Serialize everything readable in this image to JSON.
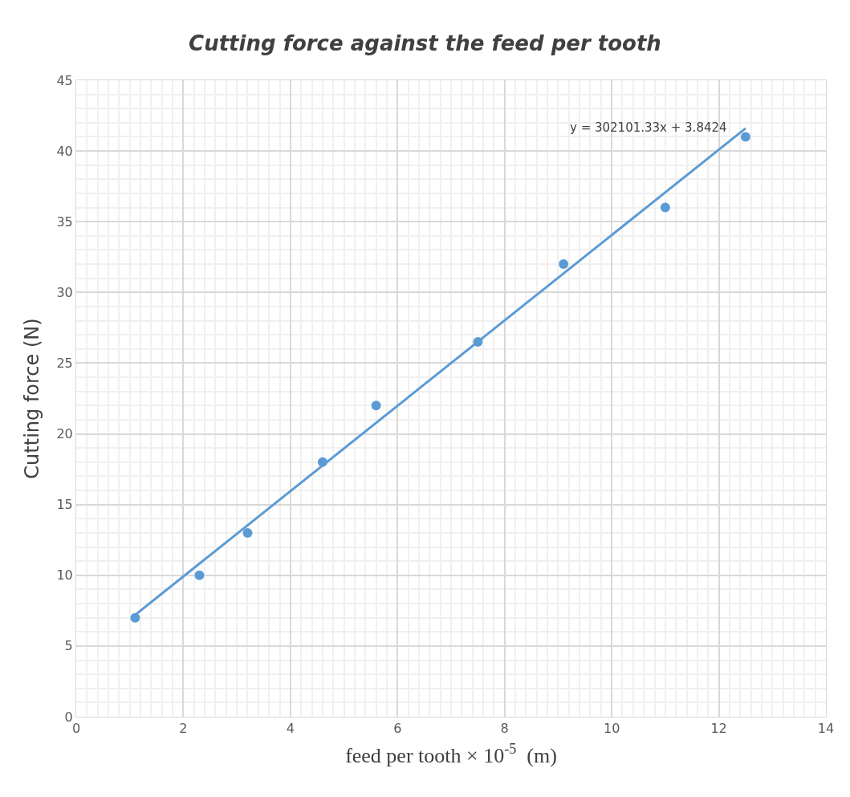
{
  "chart_data": {
    "type": "scatter",
    "title": "Cutting force against the feed per tooth",
    "xlabel": "feed per tooth × 10$^{-5}$  (m)",
    "ylabel": "Cutting force (N)",
    "x": [
      1.1,
      2.3,
      3.2,
      4.6,
      5.6,
      7.5,
      9.1,
      11,
      12.5
    ],
    "series": [
      {
        "color": "#5b9bd5",
        "values": [
          7,
          10,
          13,
          18,
          22,
          26.5,
          32,
          36,
          41
        ],
        "marker": "circle"
      },
      {
        "type": "line",
        "color": "#5b9bd5",
        "x": [
          1.1,
          12.5
        ],
        "values": [
          7.2,
          41.6
        ],
        "line_style": "solid"
      }
    ],
    "annotations": [
      "y = 302101.33x + 3.8424"
    ],
    "xlim": [
      0,
      14
    ],
    "xticks": [
      0,
      2,
      4,
      6,
      8,
      10,
      12,
      14
    ],
    "ylim": [
      0,
      45
    ],
    "yticks": [
      0,
      5,
      10,
      15,
      20,
      25,
      30,
      35,
      40,
      45
    ],
    "grid": true
  }
}
